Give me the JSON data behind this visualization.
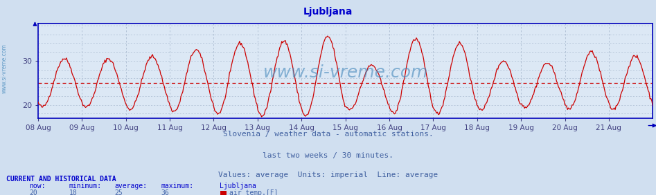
{
  "title": "Ljubljana",
  "title_color": "#0000cc",
  "title_fontsize": 10,
  "bg_color": "#d0dff0",
  "plot_bg_color": "#dce8f5",
  "axis_color": "#0000bb",
  "grid_color": "#aabbd0",
  "line_color": "#cc0000",
  "avg_line_color": "#cc0000",
  "avg_value": 25,
  "ylim": [
    17.0,
    38.5
  ],
  "yticks": [
    20,
    30
  ],
  "watermark": "www.si-vreme.com",
  "watermark_color": "#4488bb",
  "watermark_fontsize": 18,
  "subtitle1": "Slovenia / weather data - automatic stations.",
  "subtitle2": "last two weeks / 30 minutes.",
  "subtitle3": "Values: average  Units: imperial  Line: average",
  "subtitle_color": "#4060a0",
  "subtitle_fontsize": 8,
  "footer_title": "CURRENT AND HISTORICAL DATA",
  "footer_title_color": "#0000cc",
  "footer_label_color": "#0000cc",
  "footer_value_color": "#4466aa",
  "footer_labels": [
    "now:",
    "minimum:",
    "average:",
    "maximum:",
    "Ljubljana"
  ],
  "footer_values": [
    "20",
    "18",
    "25",
    "36"
  ],
  "footer_series": "air temp.[F]",
  "x_labels": [
    "08 Aug",
    "09 Aug",
    "10 Aug",
    "11 Aug",
    "12 Aug",
    "13 Aug",
    "14 Aug",
    "15 Aug",
    "16 Aug",
    "17 Aug",
    "18 Aug",
    "19 Aug",
    "20 Aug",
    "21 Aug"
  ],
  "x_label_color": "#404080",
  "x_label_fontsize": 7.5,
  "sidewater_color": "#5090c0"
}
